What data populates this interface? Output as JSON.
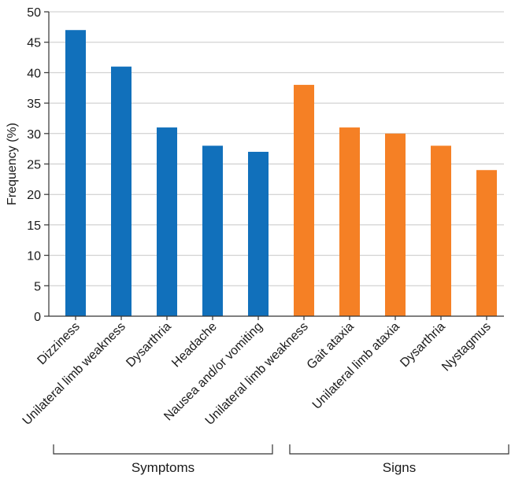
{
  "chart_data": {
    "type": "bar",
    "ylabel": "Frequency (%)",
    "xlabel": "",
    "ylim": [
      0,
      50
    ],
    "yticks": [
      0,
      5,
      10,
      15,
      20,
      25,
      30,
      35,
      40,
      45,
      50
    ],
    "grid": true,
    "groups": [
      {
        "name": "Symptoms",
        "color": "#1170bb",
        "categories": [
          "Dizziness",
          "Unilateral limb weakness",
          "Dysarthria",
          "Headache",
          "Nausea and/or vomiting"
        ],
        "values": [
          47,
          41,
          31,
          28,
          27
        ]
      },
      {
        "name": "Signs",
        "color": "#f58025",
        "categories": [
          "Unilateral limb weakness",
          "Gait ataxia",
          "Unilateral limb ataxia",
          "Dysarthria",
          "Nystagmus"
        ],
        "values": [
          38,
          31,
          30,
          28,
          24
        ]
      }
    ]
  }
}
